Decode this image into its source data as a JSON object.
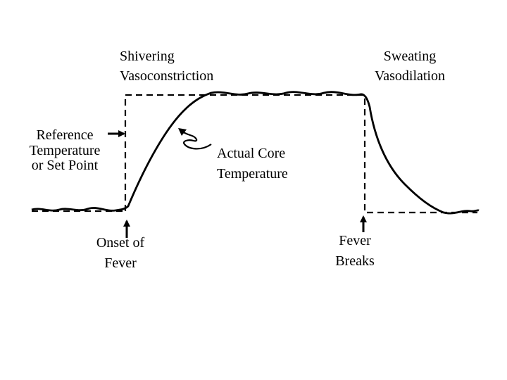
{
  "labels": {
    "top_left": [
      "Shivering",
      "Vasoconstriction"
    ],
    "top_right": [
      "Sweating",
      "Vasodilation"
    ],
    "reference": [
      "Reference",
      "Temperature",
      "or Set Point"
    ],
    "core": [
      "Actual Core",
      "Temperature"
    ],
    "onset": [
      "Onset of",
      "Fever"
    ],
    "breaks": [
      "Fever",
      "Breaks"
    ]
  },
  "colors": {
    "ink": "#000000",
    "background": "#ffffff"
  }
}
